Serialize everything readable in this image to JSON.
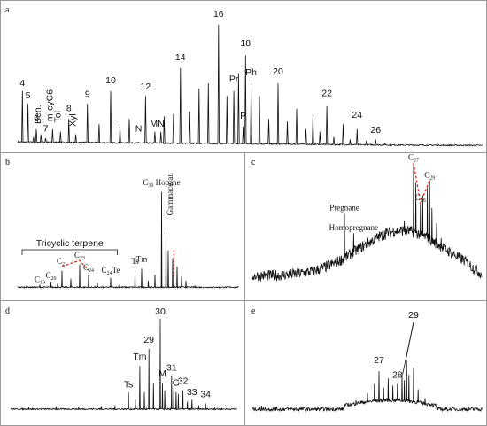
{
  "figure": {
    "panels": [
      {
        "id": "a",
        "label": "a"
      },
      {
        "id": "b",
        "label": "b"
      },
      {
        "id": "c",
        "label": "c"
      },
      {
        "id": "d",
        "label": "d"
      },
      {
        "id": "e",
        "label": "e"
      }
    ]
  },
  "chart_data": [
    {
      "panel": "a",
      "type": "line",
      "title": "",
      "xlabel": "",
      "ylabel": "",
      "xlim": [
        0,
        100
      ],
      "ylim": [
        0,
        100
      ],
      "grid": false,
      "peak_labels": [
        {
          "text": "4",
          "x": 1.0,
          "y": 46
        },
        {
          "text": "5",
          "x": 2.2,
          "y": 36
        },
        {
          "text": "6",
          "x": 4.0,
          "y": 18
        },
        {
          "text": "Ben.",
          "x": 5.0,
          "y": 16,
          "rotate": true
        },
        {
          "text": "7",
          "x": 6.0,
          "y": 10
        },
        {
          "text": "m-cyC6",
          "x": 7.5,
          "y": 18,
          "rotate": true
        },
        {
          "text": "Tol",
          "x": 9.2,
          "y": 17,
          "rotate": true
        },
        {
          "text": "8",
          "x": 11.0,
          "y": 26
        },
        {
          "text": "Xyl",
          "x": 12.5,
          "y": 14,
          "rotate": true
        },
        {
          "text": "9",
          "x": 15.0,
          "y": 37
        },
        {
          "text": "10",
          "x": 20.0,
          "y": 48
        },
        {
          "text": "12",
          "x": 27.5,
          "y": 43
        },
        {
          "text": "N",
          "x": 26.0,
          "y": 10
        },
        {
          "text": "MN",
          "x": 30.0,
          "y": 14
        },
        {
          "text": "14",
          "x": 35.0,
          "y": 66
        },
        {
          "text": "16",
          "x": 43.2,
          "y": 100
        },
        {
          "text": "18",
          "x": 49.0,
          "y": 77
        },
        {
          "text": "Pr",
          "x": 46.5,
          "y": 49
        },
        {
          "text": "Ph",
          "x": 50.2,
          "y": 54
        },
        {
          "text": "P",
          "x": 48.5,
          "y": 20
        },
        {
          "text": "20",
          "x": 56.0,
          "y": 55
        },
        {
          "text": "22",
          "x": 66.5,
          "y": 38
        },
        {
          "text": "24",
          "x": 73.0,
          "y": 21
        },
        {
          "text": "26",
          "x": 77.0,
          "y": 9
        }
      ]
    },
    {
      "panel": "b",
      "type": "line",
      "title": "",
      "xlabel": "",
      "ylabel": "",
      "xlim": [
        0,
        100
      ],
      "ylim": [
        0,
        100
      ],
      "grid": false,
      "group_label": {
        "text": "Tricyclic terpene",
        "x_from": 2,
        "x_to": 45
      },
      "peak_labels": [
        {
          "text": "C",
          "sub": "19",
          "x": 10,
          "y": 4
        },
        {
          "text": "C",
          "sub": "20",
          "x": 15,
          "y": 8
        },
        {
          "text": "C",
          "sub": "21",
          "x": 20,
          "y": 22
        },
        {
          "text": "C",
          "sub": "23",
          "x": 28,
          "y": 28
        },
        {
          "text": "C",
          "sub": "24",
          "x": 32,
          "y": 16
        },
        {
          "text": "C",
          "sub": "24",
          "tail": "Te",
          "x": 42,
          "y": 13
        },
        {
          "text": "Ts",
          "x": 53,
          "y": 22
        },
        {
          "text": "Tm",
          "x": 56,
          "y": 24
        },
        {
          "text": "C",
          "sub": "30",
          "tail": " Hopane",
          "x": 65,
          "y": 100
        },
        {
          "text": "Gammaceran",
          "x": 70,
          "y": 70,
          "rotate": true
        }
      ]
    },
    {
      "panel": "c",
      "type": "line",
      "title": "",
      "xlabel": "",
      "ylabel": "",
      "xlim": [
        0,
        100
      ],
      "ylim": [
        0,
        100
      ],
      "grid": false,
      "peak_labels": [
        {
          "text": "Pregnane",
          "x": 40,
          "y": 56
        },
        {
          "text": "Homopregnane",
          "x": 44,
          "y": 40
        },
        {
          "text": "C",
          "sub": "27",
          "x": 70,
          "y": 96
        },
        {
          "text": "C",
          "sub": "28",
          "x": 73,
          "y": 64
        },
        {
          "text": "C",
          "sub": "29",
          "x": 77,
          "y": 82
        }
      ]
    },
    {
      "panel": "d",
      "type": "line",
      "title": "",
      "xlabel": "",
      "ylabel": "",
      "xlim": [
        0,
        100
      ],
      "ylim": [
        0,
        100
      ],
      "grid": false,
      "peak_labels": [
        {
          "text": "Ts",
          "x": 52,
          "y": 22
        },
        {
          "text": "Tm",
          "x": 57,
          "y": 52
        },
        {
          "text": "29",
          "x": 61,
          "y": 70
        },
        {
          "text": "30",
          "x": 66,
          "y": 100
        },
        {
          "text": "M",
          "x": 67,
          "y": 34
        },
        {
          "text": "31",
          "x": 71,
          "y": 40
        },
        {
          "text": "G",
          "x": 73,
          "y": 24
        },
        {
          "text": "32",
          "x": 76,
          "y": 26
        },
        {
          "text": "33",
          "x": 80,
          "y": 14
        },
        {
          "text": "34",
          "x": 86,
          "y": 12
        }
      ]
    },
    {
      "panel": "e",
      "type": "line",
      "title": "",
      "xlabel": "",
      "ylabel": "",
      "xlim": [
        0,
        100
      ],
      "ylim": [
        0,
        100
      ],
      "grid": false,
      "peak_labels": [
        {
          "text": "29",
          "x": 70,
          "y": 100
        },
        {
          "text": "27",
          "x": 55,
          "y": 50
        },
        {
          "text": "28",
          "x": 63,
          "y": 34
        }
      ]
    }
  ]
}
